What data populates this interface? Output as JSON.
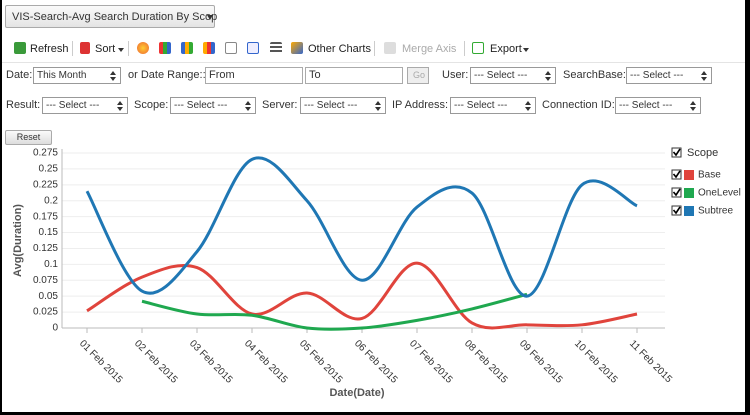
{
  "header": {
    "report_select": "VIS-Search-Avg Search Duration By Scop"
  },
  "toolbar": {
    "refresh": "Refresh",
    "sort": "Sort",
    "other_charts": "Other Charts",
    "merge_axis": "Merge Axis",
    "export": "Export"
  },
  "filters": {
    "date_label": "Date:",
    "date_value": "This Month",
    "range_label": "or Date Range::",
    "from": "From",
    "to": "To",
    "go": "Go",
    "user_label": "User:",
    "user_value": "--- Select ---",
    "searchbase_label": "SearchBase:",
    "searchbase_value": "--- Select ---",
    "result_label": "Result:",
    "result_value": "--- Select ---",
    "scope_label": "Scope:",
    "scope_value": "--- Select ---",
    "server_label": "Server:",
    "server_value": "--- Select ---",
    "ip_label": "IP Address:",
    "ip_value": "--- Select ---",
    "connection_label": "Connection ID:",
    "connection_value": "--- Select ---",
    "reset": "Reset"
  },
  "chart_data": {
    "type": "line",
    "x_label": "Date(Date)",
    "y_label": "Avg(Duration)",
    "legend_title": "Scope",
    "legend_position": "right",
    "grid": true,
    "categories": [
      "01 Feb 2015",
      "02 Feb 2015",
      "03 Feb 2015",
      "04 Feb 2015",
      "05 Feb 2015",
      "06 Feb 2015",
      "07 Feb 2015",
      "08 Feb 2015",
      "09 Feb 2015",
      "10 Feb 2015",
      "11 Feb 2015"
    ],
    "series": [
      {
        "name": "Base",
        "color": "#e0443c",
        "values": [
          0.027,
          0.08,
          0.095,
          0.022,
          0.055,
          0.015,
          0.102,
          0.008,
          0.005,
          0.005,
          0.022
        ]
      },
      {
        "name": "OneLevel",
        "color": "#1fa84f",
        "values": [
          null,
          0.042,
          0.022,
          0.02,
          0,
          0,
          0.012,
          0.03,
          0.053,
          null,
          null
        ]
      },
      {
        "name": "Subtree",
        "color": "#1f77b4",
        "values": [
          0.215,
          0.058,
          0.12,
          0.265,
          0.2,
          0.075,
          0.19,
          0.212,
          0.05,
          0.225,
          0.192
        ]
      }
    ],
    "ylim": [
      0,
      0.275
    ],
    "yticks": [
      0,
      0.025,
      0.05,
      0.075,
      0.1,
      0.125,
      0.15,
      0.175,
      0.2,
      0.225,
      0.25,
      0.275
    ]
  }
}
